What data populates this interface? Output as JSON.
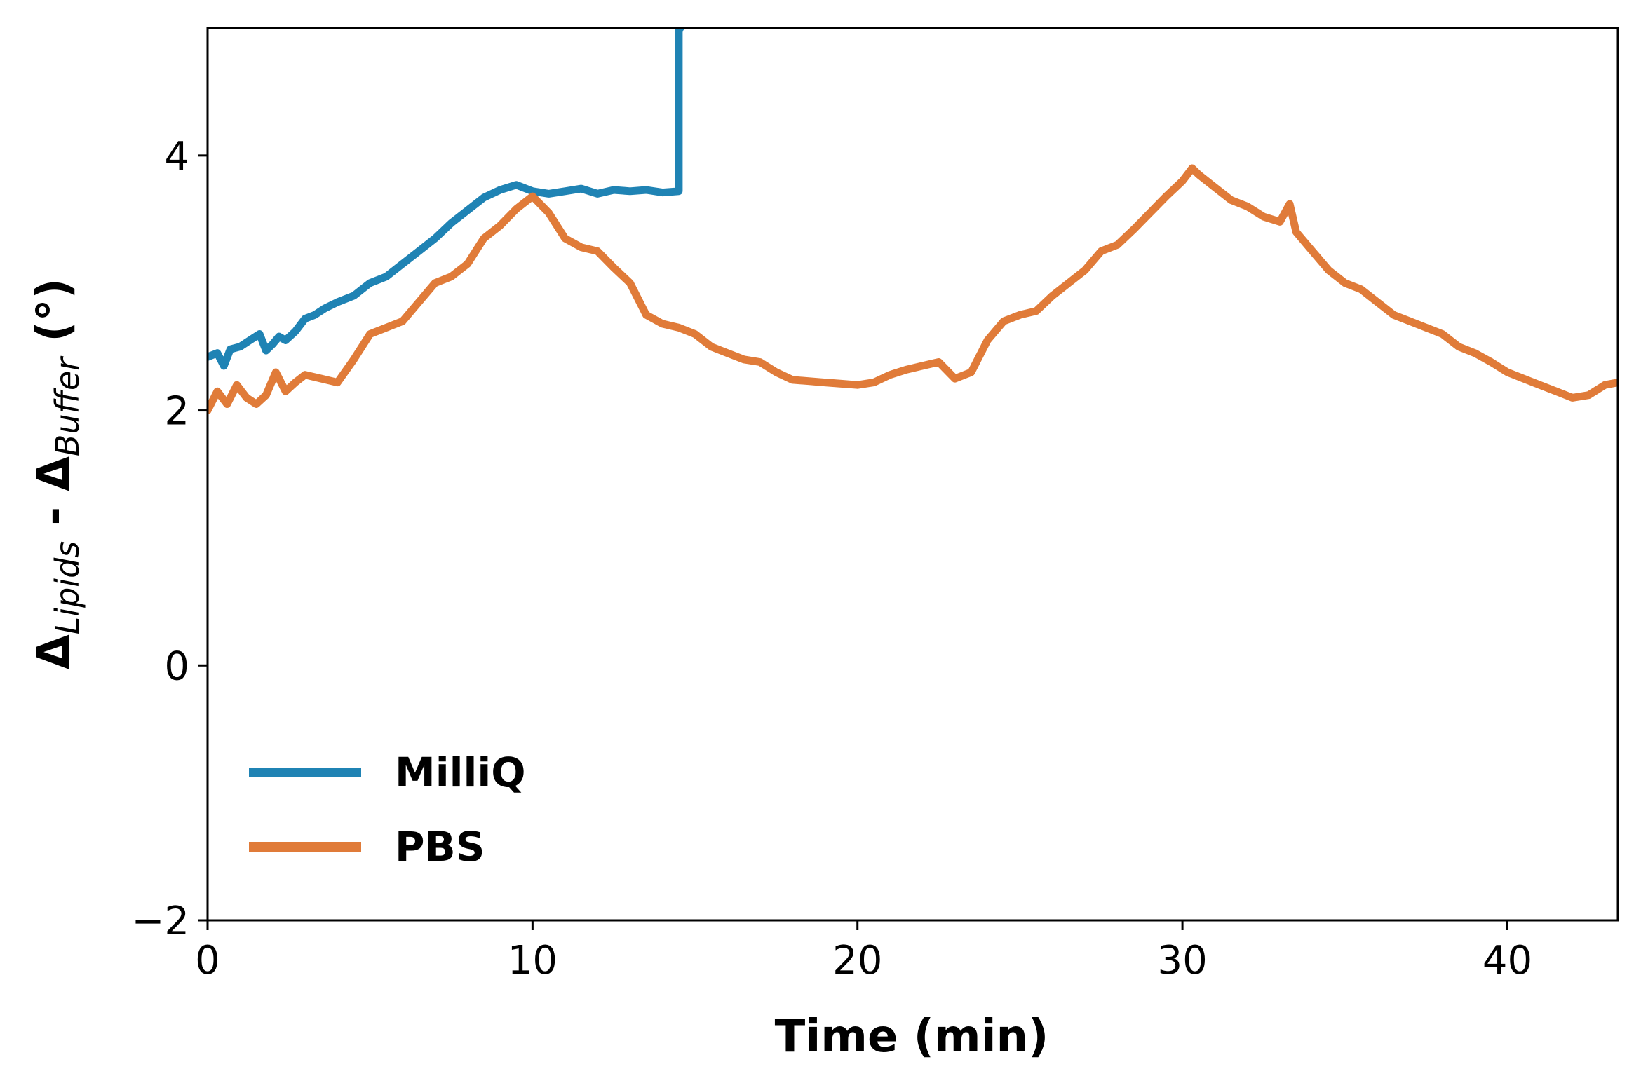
{
  "chart_data": {
    "type": "line",
    "title": "",
    "xlabel": "Time (min)",
    "ylabel": {
      "delta1": "Δ",
      "sub1": "Lipids",
      "sep": " - ",
      "delta2": "Δ",
      "sub2": "Buffer",
      "unit": " (°)"
    },
    "xlim": [
      0,
      43.4
    ],
    "ylim": [
      -2,
      5
    ],
    "xticks": [
      0,
      10,
      20,
      30,
      40
    ],
    "xtick_labels": [
      "0",
      "10",
      "20",
      "30",
      "40"
    ],
    "yticks": [
      -2,
      0,
      2,
      4
    ],
    "ytick_labels": [
      "−2",
      "0",
      "2",
      "4"
    ],
    "grid": false,
    "legend": {
      "position": "lower-left"
    },
    "series": [
      {
        "name": "MilliQ",
        "color": "#1f83b4",
        "x": [
          0,
          0.3,
          0.5,
          0.7,
          1.0,
          1.3,
          1.6,
          1.8,
          2.0,
          2.2,
          2.4,
          2.7,
          3.0,
          3.3,
          3.6,
          4.0,
          4.5,
          5.0,
          5.5,
          6.0,
          6.5,
          7.0,
          7.5,
          8.0,
          8.5,
          9.0,
          9.5,
          10.0,
          10.5,
          11.0,
          11.5,
          12.0,
          12.5,
          13.0,
          13.5,
          14.0,
          14.5,
          14.5,
          14.55
        ],
        "y": [
          2.42,
          2.45,
          2.35,
          2.48,
          2.5,
          2.55,
          2.6,
          2.47,
          2.52,
          2.58,
          2.55,
          2.62,
          2.72,
          2.75,
          2.8,
          2.85,
          2.9,
          3.0,
          3.05,
          3.15,
          3.25,
          3.35,
          3.47,
          3.57,
          3.67,
          3.73,
          3.77,
          3.72,
          3.7,
          3.72,
          3.74,
          3.7,
          3.73,
          3.72,
          3.73,
          3.71,
          3.72,
          5.0,
          5.0
        ]
      },
      {
        "name": "PBS",
        "color": "#e07b39",
        "x": [
          0,
          0.3,
          0.6,
          0.9,
          1.2,
          1.5,
          1.8,
          2.1,
          2.4,
          2.7,
          3.0,
          3.5,
          4.0,
          4.5,
          5.0,
          5.5,
          6.0,
          6.5,
          7.0,
          7.5,
          8.0,
          8.5,
          9.0,
          9.5,
          10.0,
          10.5,
          11.0,
          11.5,
          12.0,
          12.5,
          13.0,
          13.5,
          14.0,
          14.5,
          15.0,
          15.5,
          16.0,
          16.5,
          17.0,
          17.5,
          18.0,
          18.5,
          19.0,
          19.5,
          20.0,
          20.5,
          21.0,
          21.5,
          22.0,
          22.5,
          23.0,
          23.5,
          24.0,
          24.5,
          25.0,
          25.5,
          26.0,
          26.5,
          27.0,
          27.5,
          28.0,
          28.5,
          29.0,
          29.5,
          30.0,
          30.3,
          30.5,
          31.0,
          31.5,
          32.0,
          32.5,
          33.0,
          33.3,
          33.5,
          34.0,
          34.5,
          35.0,
          35.5,
          36.0,
          36.5,
          37.0,
          37.5,
          38.0,
          38.5,
          39.0,
          39.5,
          40.0,
          40.5,
          41.0,
          41.5,
          42.0,
          42.5,
          43.0,
          43.4
        ],
        "y": [
          2.0,
          2.15,
          2.05,
          2.2,
          2.1,
          2.05,
          2.12,
          2.3,
          2.15,
          2.22,
          2.28,
          2.25,
          2.22,
          2.4,
          2.6,
          2.65,
          2.7,
          2.85,
          3.0,
          3.05,
          3.15,
          3.35,
          3.45,
          3.58,
          3.68,
          3.55,
          3.35,
          3.28,
          3.25,
          3.12,
          3.0,
          2.75,
          2.68,
          2.65,
          2.6,
          2.5,
          2.45,
          2.4,
          2.38,
          2.3,
          2.24,
          2.23,
          2.22,
          2.21,
          2.2,
          2.22,
          2.28,
          2.32,
          2.35,
          2.38,
          2.25,
          2.3,
          2.55,
          2.7,
          2.75,
          2.78,
          2.9,
          3.0,
          3.1,
          3.25,
          3.3,
          3.42,
          3.55,
          3.68,
          3.8,
          3.9,
          3.85,
          3.75,
          3.65,
          3.6,
          3.52,
          3.48,
          3.62,
          3.4,
          3.25,
          3.1,
          3.0,
          2.95,
          2.85,
          2.75,
          2.7,
          2.65,
          2.6,
          2.5,
          2.45,
          2.38,
          2.3,
          2.25,
          2.2,
          2.15,
          2.1,
          2.12,
          2.2,
          2.22
        ]
      }
    ]
  }
}
